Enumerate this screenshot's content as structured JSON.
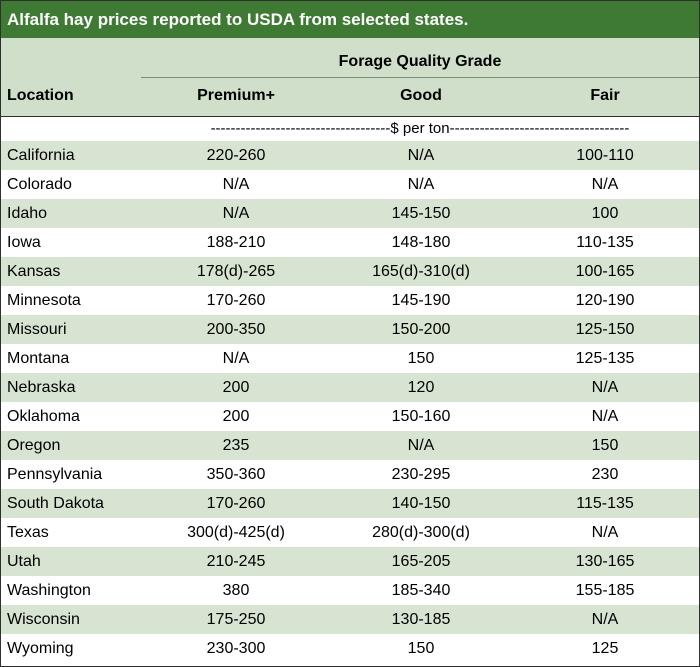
{
  "title": "Alfalfa hay prices reported to USDA from selected states.",
  "group_header": "Forage Quality Grade",
  "columns": {
    "location": "Location",
    "premium": "Premium+",
    "good": "Good",
    "fair": "Fair"
  },
  "unit_row": "------------------------------------$ per ton------------------------------------",
  "rows": [
    {
      "location": "California",
      "premium": "220-260",
      "good": "N/A",
      "fair": "100-110"
    },
    {
      "location": "Colorado",
      "premium": "N/A",
      "good": "N/A",
      "fair": "N/A"
    },
    {
      "location": "Idaho",
      "premium": "N/A",
      "good": "145-150",
      "fair": "100"
    },
    {
      "location": "Iowa",
      "premium": "188-210",
      "good": "148-180",
      "fair": "110-135"
    },
    {
      "location": "Kansas",
      "premium": "178(d)-265",
      "good": "165(d)-310(d)",
      "fair": "100-165"
    },
    {
      "location": "Minnesota",
      "premium": "170-260",
      "good": "145-190",
      "fair": "120-190"
    },
    {
      "location": "Missouri",
      "premium": "200-350",
      "good": "150-200",
      "fair": "125-150"
    },
    {
      "location": "Montana",
      "premium": "N/A",
      "good": "150",
      "fair": "125-135"
    },
    {
      "location": "Nebraska",
      "premium": "200",
      "good": "120",
      "fair": "N/A"
    },
    {
      "location": "Oklahoma",
      "premium": "200",
      "good": "150-160",
      "fair": "N/A"
    },
    {
      "location": "Oregon",
      "premium": "235",
      "good": "N/A",
      "fair": "150"
    },
    {
      "location": "Pennsylvania",
      "premium": "350-360",
      "good": "230-295",
      "fair": "230"
    },
    {
      "location": "South Dakota",
      "premium": "170-260",
      "good": "140-150",
      "fair": "115-135"
    },
    {
      "location": "Texas",
      "premium": "300(d)-425(d)",
      "good": "280(d)-300(d)",
      "fair": "N/A"
    },
    {
      "location": "Utah",
      "premium": "210-245",
      "good": "165-205",
      "fair": "130-165"
    },
    {
      "location": "Washington",
      "premium": "380",
      "good": "185-340",
      "fair": "155-185"
    },
    {
      "location": "Wisconsin",
      "premium": "175-250",
      "good": "130-185",
      "fair": "N/A"
    },
    {
      "location": "Wyoming",
      "premium": "230-300",
      "good": "150",
      "fair": "125"
    }
  ]
}
